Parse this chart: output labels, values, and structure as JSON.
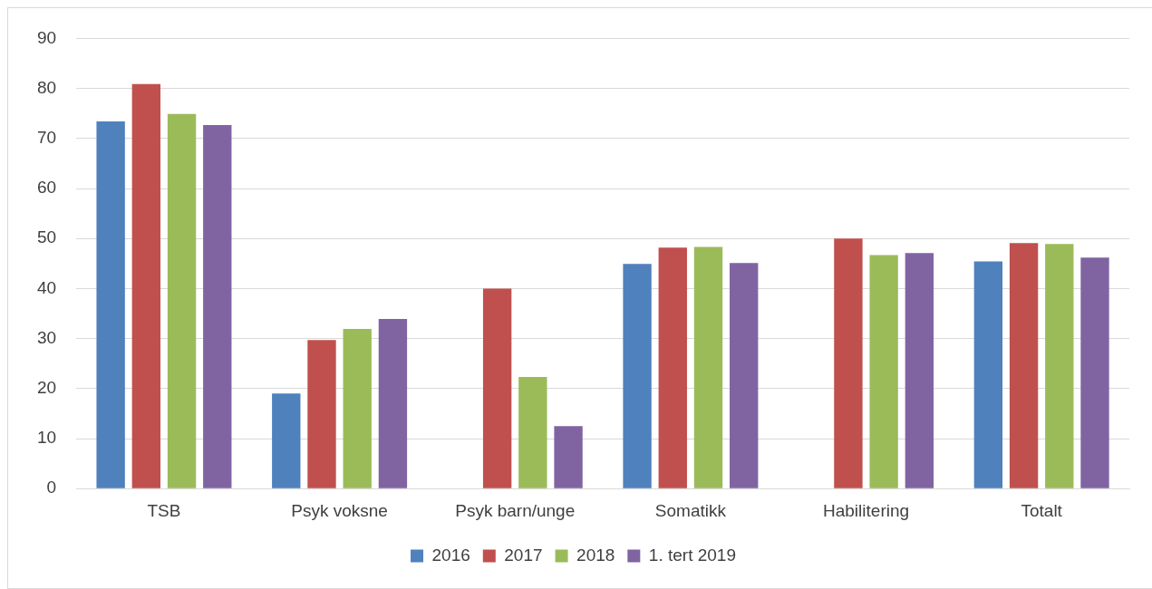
{
  "chart_data": {
    "type": "bar",
    "categories": [
      "TSB",
      "Psyk voksne",
      "Psyk barn/unge",
      "Somatikk",
      "Habilitering",
      "Totalt"
    ],
    "series": [
      {
        "name": "2016",
        "color": "#4f81bd",
        "values": [
          73.4,
          19.0,
          null,
          44.9,
          null,
          45.4
        ]
      },
      {
        "name": "2017",
        "color": "#c0504d",
        "values": [
          80.9,
          29.7,
          40.0,
          48.2,
          50.0,
          49.1
        ]
      },
      {
        "name": "2018",
        "color": "#9bbb59",
        "values": [
          74.9,
          31.9,
          22.3,
          48.3,
          46.7,
          48.9
        ]
      },
      {
        "name": "1. tert 2019",
        "color": "#8064a2",
        "values": [
          72.7,
          33.9,
          12.5,
          45.1,
          47.1,
          46.2
        ]
      }
    ],
    "ylim": [
      0,
      90
    ],
    "yticks": [
      0,
      10,
      20,
      30,
      40,
      50,
      60,
      70,
      80,
      90
    ],
    "grid": "y",
    "legend": "bottom"
  }
}
